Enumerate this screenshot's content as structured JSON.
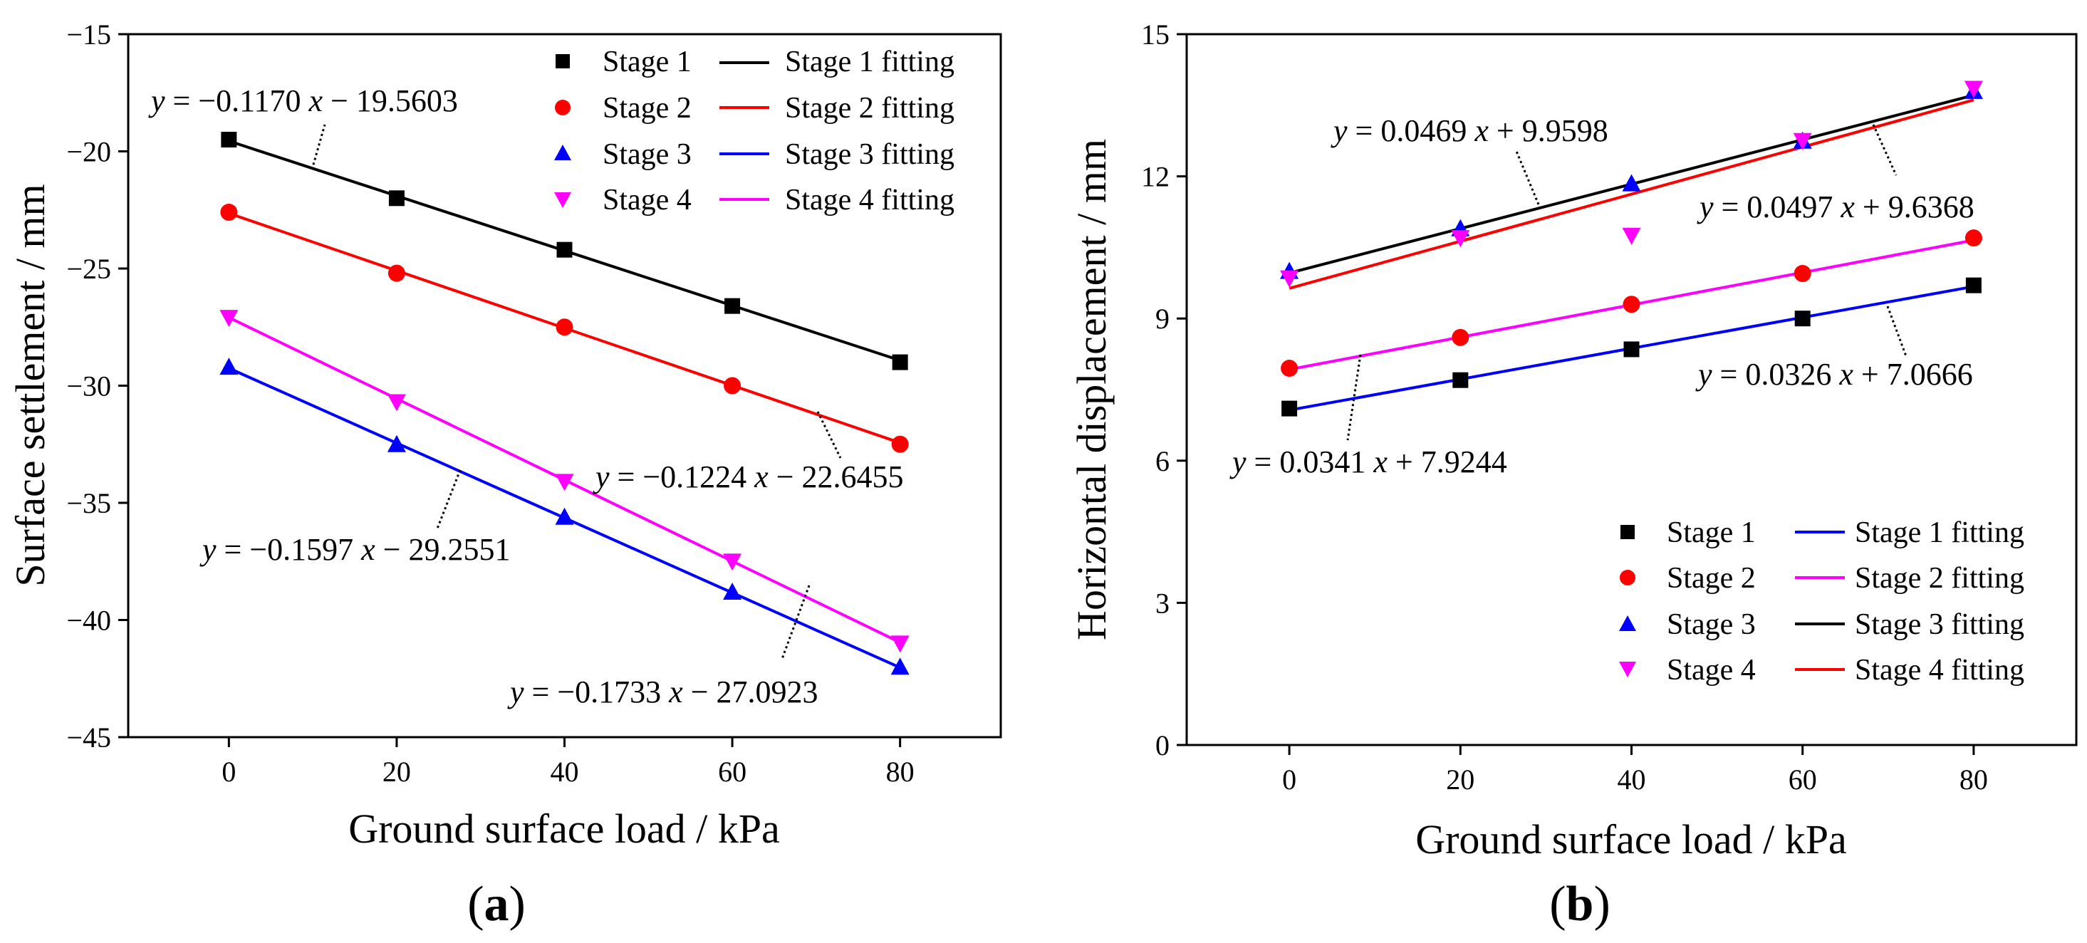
{
  "colors": {
    "stage1": "#000000",
    "stage2": "#ff0000",
    "stage3": "#0000ff",
    "stage4": "#ff00ff"
  },
  "chart_data": [
    {
      "id": "a",
      "type": "scatter",
      "panel_label": {
        "open": "(",
        "letter": "a",
        "close": ")"
      },
      "xlabel": "Ground surface load / kPa",
      "ylabel": "Surface settlement / mm",
      "xlim": [
        -12,
        92
      ],
      "ylim": [
        -45,
        -15
      ],
      "xticks": [
        0,
        20,
        40,
        60,
        80
      ],
      "yticks": [
        -45,
        -40,
        -35,
        -30,
        -25,
        -20,
        -15
      ],
      "xtick_labels": [
        "0",
        "20",
        "40",
        "60",
        "80"
      ],
      "ytick_labels": [
        "−45",
        "−40",
        "−35",
        "−30",
        "−25",
        "−20",
        "−15"
      ],
      "grid": false,
      "legend_position": "top-right",
      "series": [
        {
          "name": "Stage 1",
          "fit_name": "Stage 1 fitting",
          "marker": "square",
          "marker_color": "#000000",
          "fit_color": "#000000",
          "x": [
            0,
            20,
            40,
            60,
            80
          ],
          "y": [
            -19.5,
            -22.0,
            -24.2,
            -26.6,
            -29.0
          ],
          "slope": -0.117,
          "intercept": -19.5603
        },
        {
          "name": "Stage 2",
          "fit_name": "Stage 2 fitting",
          "marker": "circle",
          "marker_color": "#ff0000",
          "fit_color": "#ff0000",
          "x": [
            0,
            20,
            40,
            60,
            80
          ],
          "y": [
            -22.6,
            -25.2,
            -27.5,
            -30.0,
            -32.5
          ],
          "slope": -0.1224,
          "intercept": -22.6455
        },
        {
          "name": "Stage 3",
          "fit_name": "Stage 3 fitting",
          "marker": "triangle-up",
          "marker_color": "#0000ff",
          "fit_color": "#0000ff",
          "x": [
            0,
            20,
            40,
            60,
            80
          ],
          "y": [
            -29.2,
            -32.5,
            -35.6,
            -38.8,
            -42.0
          ],
          "slope": -0.1597,
          "intercept": -29.2551
        },
        {
          "name": "Stage 4",
          "fit_name": "Stage 4 fitting",
          "marker": "triangle-down",
          "marker_color": "#ff00ff",
          "fit_color": "#ff00ff",
          "x": [
            0,
            20,
            40,
            60,
            80
          ],
          "y": [
            -27.1,
            -30.7,
            -34.1,
            -37.5,
            -41.0
          ],
          "slope": -0.1733,
          "intercept": -27.0923
        }
      ],
      "annotations": [
        {
          "y": "y",
          "eq": " = −0.1170 ",
          "x": "x",
          "rest": " − 19.5603"
        },
        {
          "y": "y",
          "eq": " = −0.1224 ",
          "x": "x",
          "rest": " − 22.6455"
        },
        {
          "y": "y",
          "eq": " = −0.1597 ",
          "x": "x",
          "rest": " − 29.2551"
        },
        {
          "y": "y",
          "eq": " = −0.1733 ",
          "x": "x",
          "rest": " − 27.0923"
        }
      ]
    },
    {
      "id": "b",
      "type": "scatter",
      "panel_label": {
        "open": "(",
        "letter": "b",
        "close": ")"
      },
      "xlabel": "Ground surface load / kPa",
      "ylabel": "Horizontal displacement / mm",
      "xlim": [
        -12,
        92
      ],
      "ylim": [
        0,
        15
      ],
      "xticks": [
        0,
        20,
        40,
        60,
        80
      ],
      "yticks": [
        0,
        3,
        6,
        9,
        12,
        15
      ],
      "xtick_labels": [
        "0",
        "20",
        "40",
        "60",
        "80"
      ],
      "ytick_labels": [
        "0",
        "3",
        "6",
        "9",
        "12",
        "15"
      ],
      "grid": false,
      "legend_position": "bottom-right",
      "series": [
        {
          "name": "Stage 1",
          "fit_name": "Stage 1 fitting",
          "marker": "square",
          "marker_color": "#000000",
          "fit_color": "#0000ff",
          "x": [
            0,
            20,
            40,
            60,
            80
          ],
          "y": [
            7.1,
            7.7,
            8.35,
            9.0,
            9.7
          ],
          "slope": 0.0326,
          "intercept": 7.0666
        },
        {
          "name": "Stage 2",
          "fit_name": "Stage 2 fitting",
          "marker": "circle",
          "marker_color": "#ff0000",
          "fit_color": "#ff00ff",
          "x": [
            0,
            20,
            40,
            60,
            80
          ],
          "y": [
            7.95,
            8.6,
            9.3,
            9.95,
            10.7
          ],
          "slope": 0.0341,
          "intercept": 7.9244
        },
        {
          "name": "Stage 3",
          "fit_name": "Stage 3 fitting",
          "marker": "triangle-up",
          "marker_color": "#0000ff",
          "fit_color": "#000000",
          "x": [
            0,
            20,
            40,
            60,
            80
          ],
          "y": [
            10.0,
            10.9,
            11.85,
            12.75,
            13.8
          ],
          "slope": 0.0469,
          "intercept": 9.9598
        },
        {
          "name": "Stage 4",
          "fit_name": "Stage 4 fitting",
          "marker": "triangle-down",
          "marker_color": "#ff00ff",
          "fit_color": "#ff0000",
          "x": [
            0,
            20,
            40,
            60,
            80
          ],
          "y": [
            9.85,
            10.7,
            10.75,
            12.75,
            13.85
          ],
          "slope": 0.0497,
          "intercept": 9.6368
        }
      ],
      "annotations": [
        {
          "y": "y",
          "eq": " = 0.0469 ",
          "x": "x",
          "rest": " + 9.9598"
        },
        {
          "y": "y",
          "eq": " = 0.0497 ",
          "x": "x",
          "rest": " + 9.6368"
        },
        {
          "y": "y",
          "eq": " = 0.0326 ",
          "x": "x",
          "rest": " + 7.0666"
        },
        {
          "y": "y",
          "eq": " = 0.0341 ",
          "x": "x",
          "rest": " + 7.9244"
        }
      ]
    }
  ]
}
